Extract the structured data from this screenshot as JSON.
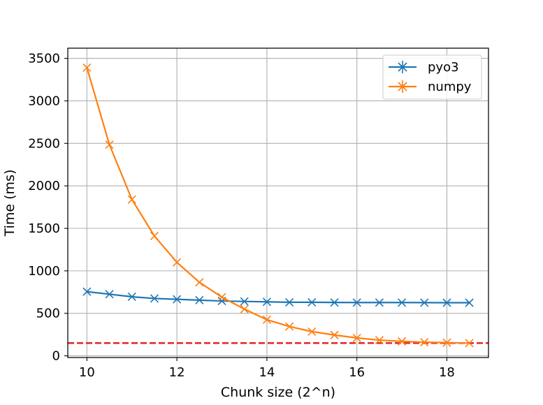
{
  "chart_data": {
    "type": "line",
    "title": "",
    "xlabel": "Chunk size (2^n)",
    "ylabel": "Time (ms)",
    "xlim": [
      9.575,
      18.925
    ],
    "ylim": [
      -20,
      3620
    ],
    "xticks": [
      10,
      12,
      14,
      16,
      18
    ],
    "yticks": [
      0,
      500,
      1000,
      1500,
      2000,
      2500,
      3000,
      3500
    ],
    "grid": true,
    "legend_position": "top-right",
    "x": [
      10,
      10.5,
      11,
      11.5,
      12,
      12.5,
      13,
      13.5,
      14,
      14.5,
      15,
      15.5,
      16,
      16.5,
      17,
      17.5,
      18,
      18.5
    ],
    "series": [
      {
        "name": "pyo3",
        "color": "#1f77b4",
        "marker": "x",
        "values": [
          755,
          725,
          695,
          675,
          665,
          655,
          645,
          640,
          635,
          630,
          630,
          628,
          627,
          627,
          627,
          626,
          625,
          625
        ]
      },
      {
        "name": "numpy",
        "color": "#ff7f0e",
        "marker": "x",
        "values": [
          3390,
          2485,
          1840,
          1410,
          1100,
          865,
          690,
          550,
          425,
          345,
          285,
          245,
          210,
          185,
          170,
          160,
          155,
          150
        ]
      }
    ],
    "reference_line": {
      "y": 150,
      "color": "#e41a1c",
      "style": "dashed"
    }
  }
}
